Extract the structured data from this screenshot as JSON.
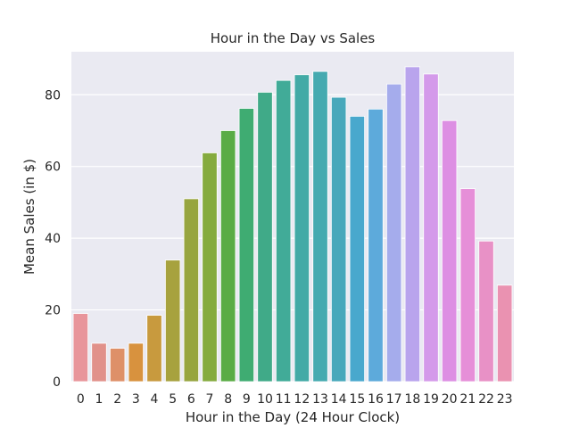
{
  "chart_data": {
    "type": "bar",
    "title": "Hour in the Day vs Sales",
    "xlabel": "Hour in the Day (24 Hour Clock)",
    "ylabel": "Mean Sales (in $)",
    "categories": [
      "0",
      "1",
      "2",
      "3",
      "4",
      "5",
      "6",
      "7",
      "8",
      "9",
      "10",
      "11",
      "12",
      "13",
      "14",
      "15",
      "16",
      "17",
      "18",
      "19",
      "20",
      "21",
      "22",
      "23"
    ],
    "values": [
      19.0,
      10.7,
      9.3,
      10.7,
      18.5,
      33.9,
      51.0,
      63.8,
      70.0,
      76.2,
      80.7,
      84.0,
      85.6,
      86.5,
      79.3,
      74.0,
      76.0,
      83.0,
      87.8,
      85.8,
      72.8,
      53.8,
      39.2,
      26.9
    ],
    "colors": [
      "#e8959b",
      "#e1918a",
      "#de9068",
      "#d8923e",
      "#c89a3e",
      "#a7a23e",
      "#97a53f",
      "#85ab3e",
      "#5aac45",
      "#3fac72",
      "#40aa88",
      "#41ab98",
      "#42aaa6",
      "#45aab0",
      "#47a8bb",
      "#49a8cd",
      "#5daadb",
      "#a5acec",
      "#b9a4ed",
      "#d49aea",
      "#dd8fe3",
      "#e68fd8",
      "#e891c6",
      "#ea92b1"
    ],
    "ylim": [
      0,
      92
    ],
    "yticks": [
      0,
      20,
      40,
      60,
      80
    ],
    "grid": true,
    "background": "#eaeaf2",
    "grid_color": "#ffffff",
    "text_color": "#262626"
  }
}
